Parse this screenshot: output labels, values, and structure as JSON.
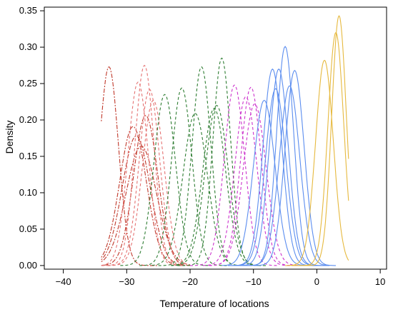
{
  "chart_data": {
    "type": "line",
    "xlabel": "Temperature of locations",
    "ylabel": "Density",
    "xlim": [
      -43,
      11
    ],
    "ylim": [
      -0.005,
      0.355
    ],
    "xticks": [
      "−40",
      "−30",
      "−20",
      "−10",
      "0",
      "10"
    ],
    "xtick_values": [
      -40,
      -30,
      -20,
      -10,
      0,
      10
    ],
    "yticks": [
      "0.00",
      "0.05",
      "0.10",
      "0.15",
      "0.20",
      "0.25",
      "0.30",
      "0.35"
    ],
    "ytick_values": [
      0,
      0.05,
      0.1,
      0.15,
      0.2,
      0.25,
      0.3,
      0.35
    ],
    "groups": [
      {
        "color": "#c0392b",
        "dash": "2,2,6,2",
        "curves": [
          {
            "center": -32.8,
            "peak": 0.273,
            "sd": 1.5,
            "x0": -34,
            "x1": -25
          },
          {
            "center": -29.0,
            "peak": 0.191,
            "sd": 2.1,
            "x0": -34,
            "x1": -21
          },
          {
            "center": -28.5,
            "peak": 0.178,
            "sd": 2.2,
            "x0": -34,
            "x1": -20
          },
          {
            "center": -27.7,
            "peak": 0.164,
            "sd": 2.4,
            "x0": -34,
            "x1": -20
          },
          {
            "center": -27.0,
            "peak": 0.206,
            "sd": 1.9,
            "x0": -34,
            "x1": -21
          }
        ]
      },
      {
        "color": "#e57373",
        "dash": "4,3",
        "curves": [
          {
            "center": -28.2,
            "peak": 0.252,
            "sd": 1.6,
            "x0": -34,
            "x1": -21
          },
          {
            "center": -27.2,
            "peak": 0.275,
            "sd": 1.5,
            "x0": -34,
            "x1": -21
          },
          {
            "center": -26.4,
            "peak": 0.242,
            "sd": 1.6,
            "x0": -33,
            "x1": -21
          },
          {
            "center": -25.8,
            "peak": 0.227,
            "sd": 1.7,
            "x0": -33,
            "x1": -20
          }
        ]
      },
      {
        "color": "#2e7d32",
        "dash": "4,3",
        "curves": [
          {
            "center": -24.0,
            "peak": 0.235,
            "sd": 1.7,
            "x0": -31,
            "x1": -17
          },
          {
            "center": -21.3,
            "peak": 0.244,
            "sd": 1.6,
            "x0": -28,
            "x1": -14
          },
          {
            "center": -19.2,
            "peak": 0.209,
            "sd": 1.9,
            "x0": -26,
            "x1": -12
          },
          {
            "center": -18.2,
            "peak": 0.273,
            "sd": 1.5,
            "x0": -25,
            "x1": -11
          },
          {
            "center": -16.2,
            "peak": 0.216,
            "sd": 1.8,
            "x0": -23,
            "x1": -9
          },
          {
            "center": -15.8,
            "peak": 0.22,
            "sd": 1.8,
            "x0": -23,
            "x1": -9
          },
          {
            "center": -15.0,
            "peak": 0.285,
            "sd": 1.4,
            "x0": -22,
            "x1": -8
          }
        ]
      },
      {
        "color": "#cc33cc",
        "dash": "4,3",
        "curves": [
          {
            "center": -13.0,
            "peak": 0.248,
            "sd": 1.6,
            "x0": -20,
            "x1": -6
          },
          {
            "center": -11.2,
            "peak": 0.232,
            "sd": 1.7,
            "x0": -18,
            "x1": -4
          },
          {
            "center": -10.4,
            "peak": 0.245,
            "sd": 1.6,
            "x0": -17,
            "x1": -3
          },
          {
            "center": -9.8,
            "peak": 0.222,
            "sd": 1.8,
            "x0": -17,
            "x1": -3
          }
        ]
      },
      {
        "color": "#5b8def",
        "dash": "",
        "curves": [
          {
            "center": -8.3,
            "peak": 0.227,
            "sd": 1.7,
            "x0": -15,
            "x1": -1
          },
          {
            "center": -7.0,
            "peak": 0.27,
            "sd": 1.5,
            "x0": -14,
            "x1": 0
          },
          {
            "center": -6.5,
            "peak": 0.243,
            "sd": 1.6,
            "x0": -14,
            "x1": 0
          },
          {
            "center": -6.0,
            "peak": 0.27,
            "sd": 1.5,
            "x0": -13,
            "x1": 1
          },
          {
            "center": -5.0,
            "peak": 0.301,
            "sd": 1.35,
            "x0": -12,
            "x1": 2
          },
          {
            "center": -4.3,
            "peak": 0.247,
            "sd": 1.6,
            "x0": -11,
            "x1": 2
          },
          {
            "center": -3.5,
            "peak": 0.268,
            "sd": 1.5,
            "x0": -10,
            "x1": 3
          }
        ]
      },
      {
        "color": "#e6b93e",
        "dash": "",
        "curves": [
          {
            "center": 1.2,
            "peak": 0.282,
            "sd": 1.4,
            "x0": -5,
            "x1": 5
          },
          {
            "center": 3.0,
            "peak": 0.32,
            "sd": 1.25,
            "x0": -4,
            "x1": 5
          },
          {
            "center": 3.5,
            "peak": 0.343,
            "sd": 1.15,
            "x0": -3,
            "x1": 5
          }
        ]
      }
    ]
  }
}
